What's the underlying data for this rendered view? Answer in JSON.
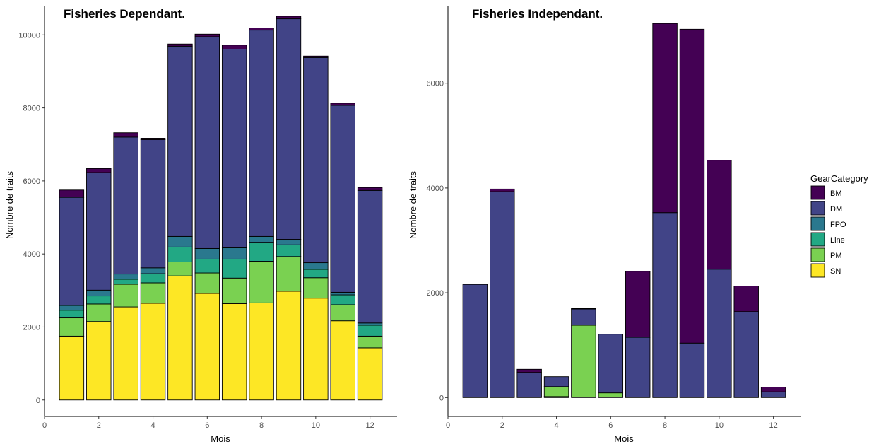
{
  "legend": {
    "title": "GearCategory",
    "items": [
      {
        "key": "BM",
        "label": "BM",
        "color": "#440154"
      },
      {
        "key": "DM",
        "label": "DM",
        "color": "#414487"
      },
      {
        "key": "FPO",
        "label": "FPO",
        "color": "#2A788E"
      },
      {
        "key": "Line",
        "label": "Line",
        "color": "#22A884"
      },
      {
        "key": "PM",
        "label": "PM",
        "color": "#7AD151"
      },
      {
        "key": "SN",
        "label": "SN",
        "color": "#FDE725"
      }
    ]
  },
  "chart_data": [
    {
      "type": "bar",
      "stacked": true,
      "title": "Fisheries Dependant.",
      "xlabel": "Mois",
      "ylabel": "Nombre de traits",
      "xlim": [
        0,
        13
      ],
      "ylim": [
        -450,
        10800
      ],
      "xticks": [
        0,
        2,
        4,
        6,
        8,
        10,
        12
      ],
      "yticks": [
        0,
        2000,
        4000,
        6000,
        8000,
        10000
      ],
      "grid": false,
      "categories": [
        1,
        2,
        3,
        4,
        5,
        6,
        7,
        8,
        9,
        10,
        11,
        12
      ],
      "series": [
        {
          "name": "SN",
          "values": [
            1750,
            2150,
            2550,
            2650,
            3400,
            2920,
            2640,
            2660,
            2980,
            2790,
            2170,
            1430
          ]
        },
        {
          "name": "PM",
          "values": [
            500,
            480,
            620,
            560,
            380,
            560,
            700,
            1140,
            950,
            560,
            440,
            320
          ]
        },
        {
          "name": "Line",
          "values": [
            210,
            220,
            140,
            250,
            410,
            380,
            520,
            520,
            320,
            230,
            270,
            300
          ]
        },
        {
          "name": "FPO",
          "values": [
            130,
            160,
            140,
            160,
            290,
            290,
            310,
            160,
            150,
            180,
            70,
            60
          ]
        },
        {
          "name": "DM",
          "values": [
            2960,
            3220,
            3750,
            3510,
            5210,
            5800,
            5440,
            5650,
            6040,
            5620,
            5120,
            3630
          ]
        },
        {
          "name": "BM",
          "values": [
            200,
            110,
            120,
            40,
            60,
            70,
            110,
            60,
            70,
            40,
            60,
            80
          ]
        }
      ]
    },
    {
      "type": "bar",
      "stacked": true,
      "title": "Fisheries Independant.",
      "xlabel": "Mois",
      "ylabel": "Nombre de traits",
      "xlim": [
        0,
        13
      ],
      "ylim": [
        -360,
        7480
      ],
      "xticks": [
        0,
        2,
        4,
        6,
        8,
        10,
        12
      ],
      "yticks": [
        0,
        2000,
        4000,
        6000
      ],
      "grid": false,
      "categories": [
        1,
        2,
        3,
        4,
        5,
        6,
        7,
        8,
        9,
        10,
        11,
        12
      ],
      "series": [
        {
          "name": "SN",
          "values": [
            0,
            0,
            0,
            20,
            0,
            0,
            0,
            0,
            0,
            0,
            0,
            0
          ]
        },
        {
          "name": "PM",
          "values": [
            0,
            0,
            0,
            190,
            1380,
            90,
            0,
            0,
            0,
            0,
            0,
            0
          ]
        },
        {
          "name": "Line",
          "values": [
            0,
            0,
            0,
            0,
            0,
            0,
            0,
            0,
            0,
            0,
            0,
            0
          ]
        },
        {
          "name": "FPO",
          "values": [
            0,
            0,
            0,
            0,
            0,
            0,
            0,
            0,
            0,
            0,
            0,
            0
          ]
        },
        {
          "name": "DM",
          "values": [
            2160,
            3930,
            480,
            190,
            310,
            1120,
            1150,
            3530,
            1040,
            2450,
            1640,
            110
          ]
        },
        {
          "name": "BM",
          "values": [
            0,
            50,
            60,
            0,
            10,
            0,
            1260,
            3610,
            5990,
            2080,
            490,
            90
          ]
        }
      ]
    }
  ]
}
